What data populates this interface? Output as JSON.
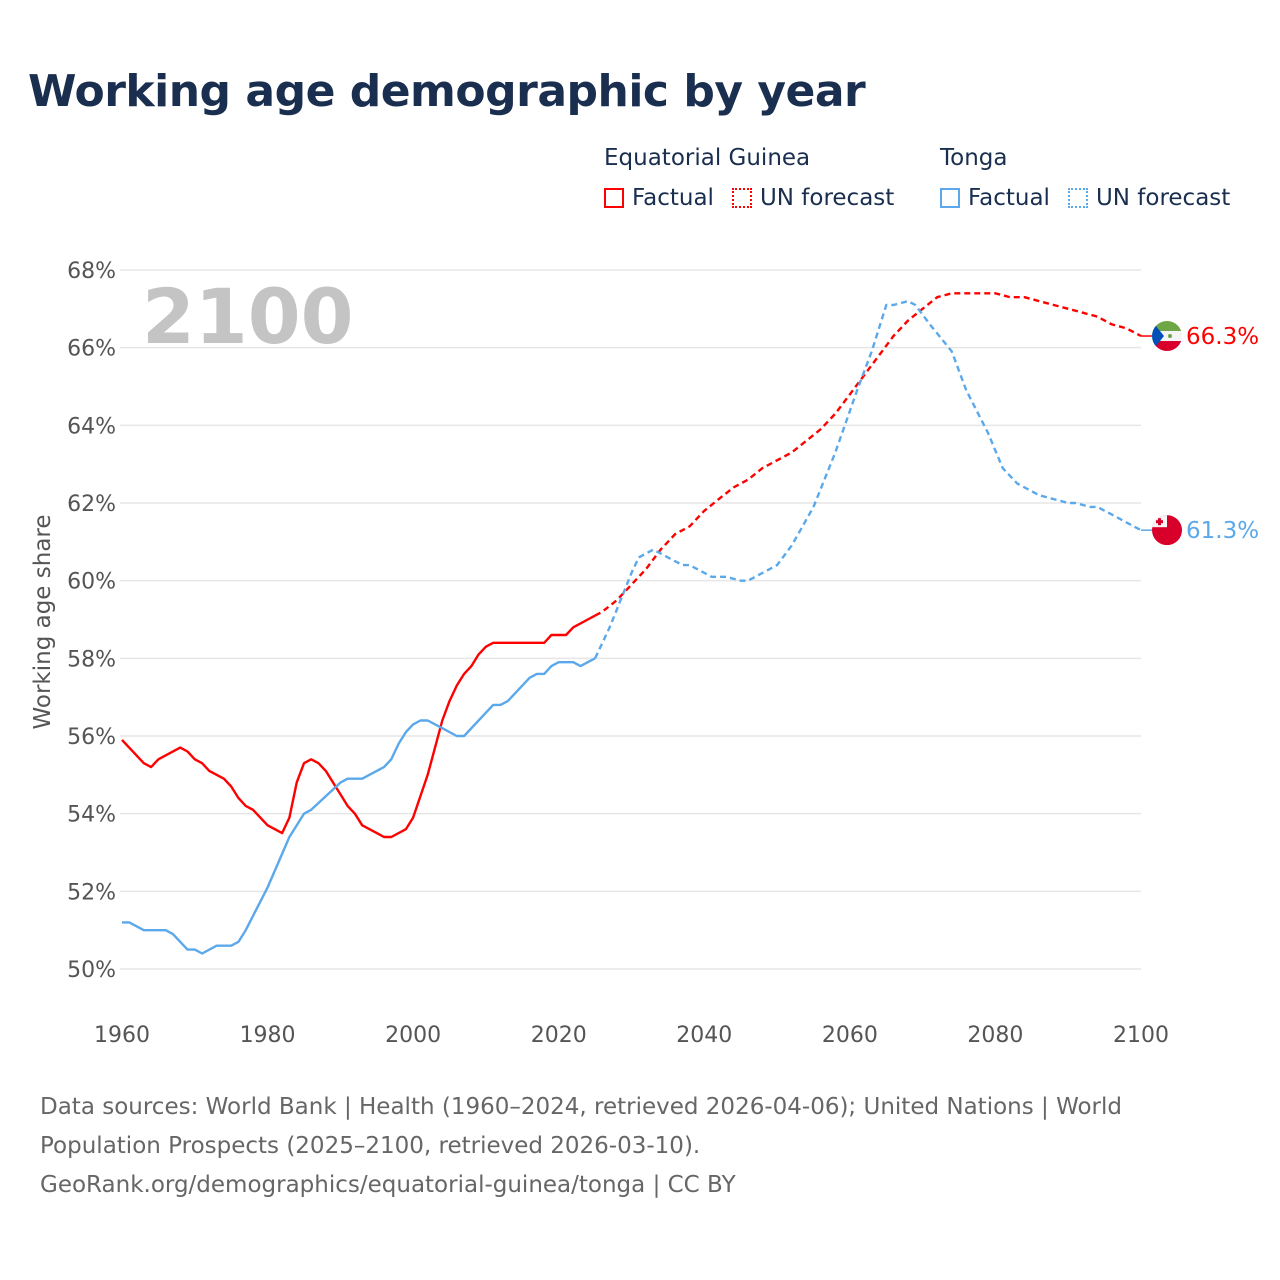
{
  "title": "Working age demographic by year",
  "legend": {
    "groups": [
      {
        "country": "Equatorial Guinea",
        "factual": "Factual",
        "forecast": "UN forecast",
        "color": "#ff0000"
      },
      {
        "country": "Tonga",
        "factual": "Factual",
        "forecast": "UN forecast",
        "color": "#5ba8ea"
      }
    ]
  },
  "footer": {
    "sources": "Data sources: World Bank | Health (1960–2024, retrieved 2026-04-06); United Nations | World Population Prospects (2025–2100, retrieved 2026-03-10).",
    "link": "GeoRank.org/demographics/equatorial-guinea/tonga | CC BY"
  },
  "chart_data": {
    "type": "line",
    "title": "Working age demographic by year",
    "xlabel": "",
    "ylabel": "Working age share",
    "year_watermark": "2100",
    "xlim": [
      1960,
      2100
    ],
    "ylim": [
      50,
      68
    ],
    "xticks": [
      "1960",
      "1980",
      "2000",
      "2020",
      "2040",
      "2060",
      "2080",
      "2100"
    ],
    "yticks": [
      "50%",
      "52%",
      "54%",
      "56%",
      "58%",
      "60%",
      "62%",
      "64%",
      "66%",
      "68%"
    ],
    "grid": true,
    "series": [
      {
        "name": "Equatorial Guinea (Factual)",
        "color": "#ff0000",
        "dashed": false,
        "x": [
          1960,
          1963,
          1964,
          1965,
          1968,
          1969,
          1970,
          1971,
          1972,
          1974,
          1975,
          1976,
          1977,
          1978,
          1980,
          1982,
          1983,
          1984,
          1985,
          1986,
          1987,
          1988,
          1989,
          1990,
          1991,
          1992,
          1993,
          1995,
          1996,
          1997,
          1999,
          2000,
          2002,
          2004,
          2005,
          2006,
          2007,
          2008,
          2009,
          2010,
          2011,
          2018,
          2019,
          2021,
          2022,
          2024,
          2025
        ],
        "y": [
          55.9,
          55.3,
          55.2,
          55.4,
          55.7,
          55.6,
          55.4,
          55.3,
          55.1,
          54.9,
          54.7,
          54.4,
          54.2,
          54.1,
          53.7,
          53.5,
          53.9,
          54.8,
          55.3,
          55.4,
          55.3,
          55.1,
          54.8,
          54.5,
          54.2,
          54.0,
          53.7,
          53.5,
          53.4,
          53.4,
          53.6,
          53.9,
          55.0,
          56.4,
          56.9,
          57.3,
          57.6,
          57.8,
          58.1,
          58.3,
          58.4,
          58.4,
          58.6,
          58.6,
          58.8,
          59.0,
          59.1
        ]
      },
      {
        "name": "Equatorial Guinea (UN forecast)",
        "color": "#ff0000",
        "dashed": true,
        "x": [
          2025,
          2026,
          2028,
          2030,
          2032,
          2034,
          2036,
          2038,
          2040,
          2042,
          2044,
          2046,
          2048,
          2050,
          2052,
          2054,
          2056,
          2058,
          2060,
          2062,
          2064,
          2066,
          2068,
          2070,
          2072,
          2074,
          2076,
          2080,
          2082,
          2084,
          2086,
          2088,
          2090,
          2092,
          2094,
          2096,
          2098,
          2100
        ],
        "y": [
          59.1,
          59.2,
          59.5,
          59.9,
          60.3,
          60.8,
          61.2,
          61.4,
          61.8,
          62.1,
          62.4,
          62.6,
          62.9,
          63.1,
          63.3,
          63.6,
          63.9,
          64.3,
          64.8,
          65.3,
          65.8,
          66.3,
          66.7,
          67.0,
          67.3,
          67.4,
          67.4,
          67.4,
          67.3,
          67.3,
          67.2,
          67.1,
          67.0,
          66.9,
          66.8,
          66.6,
          66.5,
          66.3
        ]
      },
      {
        "name": "Tonga (Factual)",
        "color": "#5ba8ea",
        "dashed": false,
        "x": [
          1960,
          1961,
          1963,
          1966,
          1967,
          1969,
          1970,
          1971,
          1973,
          1975,
          1976,
          1977,
          1980,
          1983,
          1985,
          1986,
          1990,
          1991,
          1993,
          1996,
          1997,
          1998,
          1999,
          2000,
          2001,
          2002,
          2004,
          2006,
          2007,
          2010,
          2011,
          2012,
          2013,
          2016,
          2017,
          2018,
          2019,
          2020,
          2022,
          2023,
          2025
        ],
        "y": [
          51.2,
          51.2,
          51.0,
          51.0,
          50.9,
          50.5,
          50.5,
          50.4,
          50.6,
          50.6,
          50.7,
          51.0,
          52.1,
          53.4,
          54.0,
          54.1,
          54.8,
          54.9,
          54.9,
          55.2,
          55.4,
          55.8,
          56.1,
          56.3,
          56.4,
          56.4,
          56.2,
          56.0,
          56.0,
          56.6,
          56.8,
          56.8,
          56.9,
          57.5,
          57.6,
          57.6,
          57.8,
          57.9,
          57.9,
          57.8,
          58.0
        ]
      },
      {
        "name": "Tonga (UN forecast)",
        "color": "#5ba8ea",
        "dashed": true,
        "x": [
          2025,
          2027,
          2030,
          2031,
          2033,
          2035,
          2037,
          2038,
          2041,
          2043,
          2045,
          2046,
          2048,
          2050,
          2052,
          2055,
          2058,
          2061,
          2063,
          2065,
          2066,
          2068,
          2069,
          2071,
          2074,
          2076,
          2079,
          2081,
          2083,
          2086,
          2088,
          2090,
          2091,
          2093,
          2094,
          2096,
          2098,
          2100
        ],
        "y": [
          58.0,
          58.8,
          60.2,
          60.6,
          60.8,
          60.6,
          60.4,
          60.4,
          60.1,
          60.1,
          60.0,
          60.0,
          60.2,
          60.4,
          60.9,
          61.9,
          63.3,
          64.9,
          65.9,
          67.1,
          67.1,
          67.2,
          67.1,
          66.6,
          65.9,
          64.9,
          63.8,
          62.9,
          62.5,
          62.2,
          62.1,
          62.0,
          62.0,
          61.9,
          61.9,
          61.7,
          61.5,
          61.3
        ]
      }
    ],
    "end_labels": [
      {
        "country": "Equatorial Guinea",
        "value": 66.3,
        "text": "66.3%",
        "color": "#ff0000",
        "flag": "equatorial-guinea-flag-icon"
      },
      {
        "country": "Tonga",
        "value": 61.3,
        "text": "61.3%",
        "color": "#5ba8ea",
        "flag": "tonga-flag-icon"
      }
    ]
  }
}
